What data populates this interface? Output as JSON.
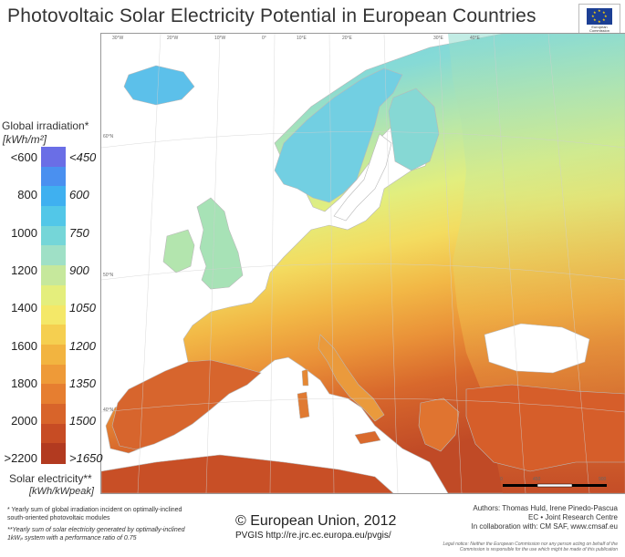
{
  "title": "Photovoltaic Solar Electricity Potential in European Countries",
  "logo": {
    "text_line1": "European",
    "text_line2": "Commission"
  },
  "legend": {
    "top_title": "Global irradiation*",
    "top_unit": "[kWh/m²]",
    "left_labels": [
      "<600",
      "800",
      "1000",
      "1200",
      "1400",
      "1600",
      "1800",
      "2000",
      ">2200"
    ],
    "right_labels": [
      "<450",
      "600",
      "750",
      "900",
      "1050",
      "1200",
      "1350",
      "1500",
      ">1650"
    ],
    "bottom_title": "Solar electricity**",
    "bottom_unit": "[kWh/kWpeak]",
    "colors": [
      "#6a6ee6",
      "#4a90f0",
      "#3fb0f0",
      "#52c7e8",
      "#75d6d8",
      "#9fe0c6",
      "#c6e89c",
      "#e4ee7c",
      "#f4e868",
      "#f5cf50",
      "#f2b440",
      "#ee9a38",
      "#e67e30",
      "#d8642a",
      "#c74c24",
      "#b23a20"
    ]
  },
  "graticule": {
    "top": [
      "30°W",
      "20°W",
      "10°W",
      "0°",
      "10°E",
      "20°E",
      "30°E",
      "40°E"
    ],
    "side": [
      "60°N",
      "50°N",
      "40°N"
    ]
  },
  "footnotes": {
    "note1_line1": "* Yearly sum of global irradiation incident on optimally-inclined",
    "note1_line2": "south-oriented photovoltaic modules",
    "note2_line1": "**Yearly sum of solar electricity generated by optimally-inclined",
    "note2_line2": "1kWₚ system with a performance ratio of 0.75"
  },
  "copyright": "© European Union, 2012",
  "pvgis": "PVGIS http://re.jrc.ec.europa.eu/pvgis/",
  "authors": {
    "line1": "Authors: Thomas Huld, Irene Pinedo-Pascua",
    "line2": "EC • Joint Research Centre",
    "line3": "In collaboration with: CM SAF, www.cmsaf.eu"
  },
  "legal": {
    "line1": "Legal notice: Neither the European Commission nor any person acting on behalf of the",
    "line2": "Commission is responsible for the use which might be made of this publication"
  },
  "scale": {
    "labels": [
      "0",
      "450",
      "900"
    ],
    "unit": "km"
  }
}
